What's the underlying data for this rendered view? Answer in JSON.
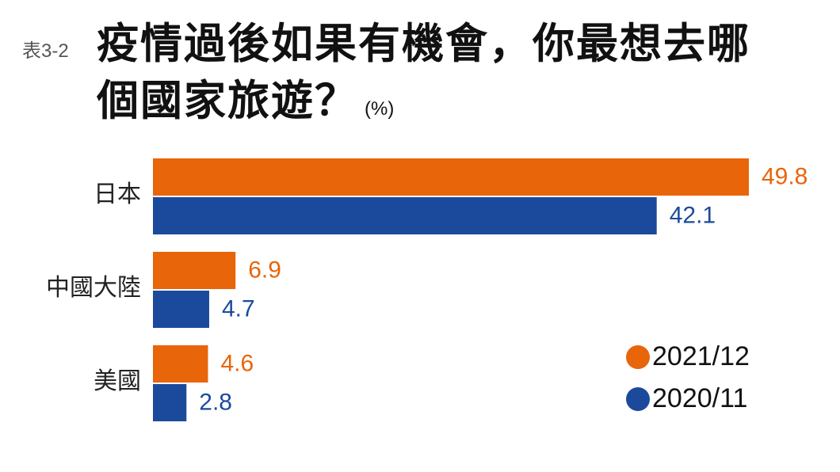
{
  "chart_data": {
    "type": "hbar",
    "label": "表3-2",
    "title": "疫情過後如果有機會，你最想去哪個國家旅遊？",
    "unit": "(%)",
    "categories": [
      "日本",
      "中國大陸",
      "美國"
    ],
    "series": [
      {
        "name": "2021/12",
        "color": "#e8650a",
        "values": [
          49.8,
          6.9,
          4.6
        ]
      },
      {
        "name": "2020/11",
        "color": "#1b4a9c",
        "values": [
          42.1,
          4.7,
          2.8
        ]
      }
    ],
    "xlim": [
      0,
      50
    ],
    "legend": "lower right"
  }
}
